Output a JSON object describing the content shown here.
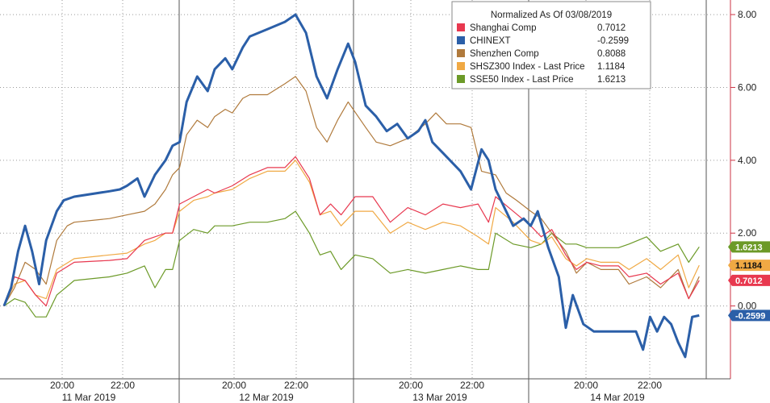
{
  "chart_data": {
    "type": "line",
    "title": "Normalized As Of 03/08/2019",
    "ylim": [
      -2,
      8.4
    ],
    "y_ticks": [
      "8.00",
      "6.00",
      "4.00",
      "2.00",
      "0.00"
    ],
    "y_tick_values": [
      8,
      6,
      4,
      2,
      0
    ],
    "x_time_ticks": [
      "20:00",
      "22:00",
      "20:00",
      "22:00",
      "20:00",
      "22:00",
      "20:00",
      "22:00"
    ],
    "x_day_labels": [
      "11 Mar 2019",
      "12 Mar 2019",
      "13 Mar 2019",
      "14 Mar 2019"
    ],
    "grid": true,
    "legend_position": "top-right",
    "series": [
      {
        "name": "Shanghai Comp",
        "last_value": "0.7012",
        "color": "#e8384f",
        "values": [
          [
            0,
            0
          ],
          [
            0.3,
            0.8
          ],
          [
            0.6,
            0.7
          ],
          [
            0.9,
            0.3
          ],
          [
            1.2,
            0
          ],
          [
            1.5,
            0.9
          ],
          [
            2,
            1.2
          ],
          [
            3,
            1.25
          ],
          [
            3.5,
            1.3
          ],
          [
            4,
            1.8
          ],
          [
            4.3,
            1.9
          ],
          [
            4.6,
            2
          ],
          [
            4.8,
            2
          ],
          [
            5,
            2.8
          ],
          [
            5.4,
            3
          ],
          [
            5.8,
            3.2
          ],
          [
            6,
            3.1
          ],
          [
            6.5,
            3.3
          ],
          [
            7,
            3.6
          ],
          [
            7.5,
            3.8
          ],
          [
            8,
            3.8
          ],
          [
            8.3,
            4.1
          ],
          [
            8.7,
            3.5
          ],
          [
            9,
            2.5
          ],
          [
            9.3,
            2.8
          ],
          [
            9.6,
            2.5
          ],
          [
            10,
            3
          ],
          [
            10.5,
            3
          ],
          [
            11,
            2.3
          ],
          [
            11.5,
            2.7
          ],
          [
            12,
            2.5
          ],
          [
            12.5,
            2.8
          ],
          [
            13,
            2.7
          ],
          [
            13.5,
            2.8
          ],
          [
            13.8,
            2.3
          ],
          [
            14,
            3
          ],
          [
            14.5,
            2.6
          ],
          [
            15,
            2.2
          ],
          [
            15.3,
            1.9
          ],
          [
            15.6,
            2.1
          ],
          [
            16,
            1.4
          ],
          [
            16.3,
            1
          ],
          [
            16.6,
            1.2
          ],
          [
            17,
            1.1
          ],
          [
            17.5,
            1.1
          ],
          [
            17.8,
            0.8
          ],
          [
            18.3,
            0.9
          ],
          [
            18.7,
            0.6
          ],
          [
            19.2,
            0.9
          ],
          [
            19.5,
            0.2
          ],
          [
            19.8,
            0.7012
          ]
        ]
      },
      {
        "name": "CHINEXT",
        "last_value": "-0.2599",
        "color": "#2b5fa8",
        "values": [
          [
            0,
            0
          ],
          [
            0.2,
            0.5
          ],
          [
            0.4,
            1.5
          ],
          [
            0.6,
            2.2
          ],
          [
            0.8,
            1.5
          ],
          [
            1,
            0.6
          ],
          [
            1.2,
            1.8
          ],
          [
            1.5,
            2.6
          ],
          [
            1.7,
            2.9
          ],
          [
            2,
            3
          ],
          [
            3,
            3.15
          ],
          [
            3.3,
            3.2
          ],
          [
            3.5,
            3.3
          ],
          [
            3.8,
            3.5
          ],
          [
            4,
            3
          ],
          [
            4.3,
            3.6
          ],
          [
            4.6,
            4
          ],
          [
            4.8,
            4.4
          ],
          [
            5,
            4.5
          ],
          [
            5.2,
            5.6
          ],
          [
            5.5,
            6.3
          ],
          [
            5.8,
            5.9
          ],
          [
            6,
            6.5
          ],
          [
            6.3,
            6.8
          ],
          [
            6.5,
            6.5
          ],
          [
            6.8,
            7.1
          ],
          [
            7,
            7.4
          ],
          [
            7.5,
            7.6
          ],
          [
            8,
            7.8
          ],
          [
            8.3,
            8
          ],
          [
            8.6,
            7.5
          ],
          [
            8.9,
            6.3
          ],
          [
            9.2,
            5.7
          ],
          [
            9.5,
            6.5
          ],
          [
            9.8,
            7.2
          ],
          [
            10,
            6.7
          ],
          [
            10.3,
            5.5
          ],
          [
            10.6,
            5.2
          ],
          [
            10.9,
            4.8
          ],
          [
            11.2,
            5
          ],
          [
            11.5,
            4.6
          ],
          [
            11.8,
            4.8
          ],
          [
            12,
            5.1
          ],
          [
            12.2,
            4.5
          ],
          [
            12.5,
            4.2
          ],
          [
            13,
            3.7
          ],
          [
            13.3,
            3.2
          ],
          [
            13.6,
            4.3
          ],
          [
            13.8,
            4
          ],
          [
            14,
            3.2
          ],
          [
            14.3,
            2.6
          ],
          [
            14.5,
            2.2
          ],
          [
            14.8,
            2.4
          ],
          [
            15,
            2.2
          ],
          [
            15.2,
            2.6
          ],
          [
            15.5,
            1.6
          ],
          [
            15.8,
            0.8
          ],
          [
            16,
            -0.6
          ],
          [
            16.2,
            0.3
          ],
          [
            16.5,
            -0.5
          ],
          [
            16.8,
            -0.7
          ],
          [
            17.5,
            -0.7
          ],
          [
            18,
            -0.7
          ],
          [
            18.2,
            -1.2
          ],
          [
            18.4,
            -0.3
          ],
          [
            18.6,
            -0.7
          ],
          [
            18.8,
            -0.3
          ],
          [
            19,
            -0.5
          ],
          [
            19.2,
            -1
          ],
          [
            19.4,
            -1.4
          ],
          [
            19.6,
            -0.3
          ],
          [
            19.8,
            -0.2599
          ]
        ]
      },
      {
        "name": "Shenzhen Comp",
        "last_value": "0.8088",
        "color": "#b07a3c",
        "values": [
          [
            0,
            0
          ],
          [
            0.3,
            0.5
          ],
          [
            0.6,
            1.2
          ],
          [
            0.9,
            1
          ],
          [
            1.2,
            0.6
          ],
          [
            1.5,
            1.8
          ],
          [
            1.8,
            2.2
          ],
          [
            2,
            2.3
          ],
          [
            3,
            2.4
          ],
          [
            3.5,
            2.5
          ],
          [
            4,
            2.6
          ],
          [
            4.3,
            2.8
          ],
          [
            4.6,
            3.2
          ],
          [
            4.8,
            3.6
          ],
          [
            5,
            3.8
          ],
          [
            5.2,
            4.7
          ],
          [
            5.5,
            5.1
          ],
          [
            5.8,
            4.9
          ],
          [
            6,
            5.2
          ],
          [
            6.3,
            5.4
          ],
          [
            6.5,
            5.3
          ],
          [
            6.8,
            5.7
          ],
          [
            7,
            5.8
          ],
          [
            7.5,
            5.8
          ],
          [
            8,
            6.1
          ],
          [
            8.3,
            6.3
          ],
          [
            8.6,
            5.9
          ],
          [
            8.9,
            4.9
          ],
          [
            9.2,
            4.5
          ],
          [
            9.5,
            5.1
          ],
          [
            9.8,
            5.6
          ],
          [
            10.3,
            4.9
          ],
          [
            10.6,
            4.5
          ],
          [
            11,
            4.4
          ],
          [
            11.5,
            4.6
          ],
          [
            12,
            5
          ],
          [
            12.3,
            5.3
          ],
          [
            12.6,
            5
          ],
          [
            13,
            5
          ],
          [
            13.3,
            4.9
          ],
          [
            13.6,
            3.7
          ],
          [
            14,
            3.6
          ],
          [
            14.3,
            3.1
          ],
          [
            14.6,
            2.9
          ],
          [
            15,
            2.6
          ],
          [
            15.3,
            2.4
          ],
          [
            15.6,
            2
          ],
          [
            16,
            1.5
          ],
          [
            16.3,
            0.9
          ],
          [
            16.6,
            1.2
          ],
          [
            17,
            1
          ],
          [
            17.5,
            1
          ],
          [
            17.8,
            0.6
          ],
          [
            18.3,
            0.8
          ],
          [
            18.7,
            0.5
          ],
          [
            19.2,
            1
          ],
          [
            19.5,
            0.2
          ],
          [
            19.8,
            0.8088
          ]
        ]
      },
      {
        "name": "SHSZ300 Index - Last Price",
        "last_value": "1.1184",
        "color": "#f0a944",
        "values": [
          [
            0,
            0
          ],
          [
            0.3,
            0.6
          ],
          [
            0.6,
            0.7
          ],
          [
            0.9,
            0.3
          ],
          [
            1.2,
            0.2
          ],
          [
            1.5,
            1
          ],
          [
            2,
            1.3
          ],
          [
            3,
            1.4
          ],
          [
            3.5,
            1.45
          ],
          [
            4,
            1.7
          ],
          [
            4.3,
            1.8
          ],
          [
            4.6,
            2
          ],
          [
            4.8,
            2
          ],
          [
            5,
            2.6
          ],
          [
            5.4,
            2.9
          ],
          [
            5.8,
            3
          ],
          [
            6,
            3.1
          ],
          [
            6.5,
            3.2
          ],
          [
            7,
            3.5
          ],
          [
            7.5,
            3.7
          ],
          [
            8,
            3.7
          ],
          [
            8.3,
            4
          ],
          [
            8.7,
            3.4
          ],
          [
            9,
            2.5
          ],
          [
            9.3,
            2.6
          ],
          [
            9.6,
            2.2
          ],
          [
            10,
            2.6
          ],
          [
            10.5,
            2.6
          ],
          [
            11,
            2
          ],
          [
            11.5,
            2.3
          ],
          [
            12,
            2.1
          ],
          [
            12.5,
            2.3
          ],
          [
            13,
            2.2
          ],
          [
            13.5,
            1.9
          ],
          [
            13.8,
            1.7
          ],
          [
            14,
            2.7
          ],
          [
            14.5,
            2.3
          ],
          [
            15,
            1.8
          ],
          [
            15.3,
            1.7
          ],
          [
            15.6,
            1.9
          ],
          [
            16,
            1.3
          ],
          [
            16.3,
            1.1
          ],
          [
            16.6,
            1.3
          ],
          [
            17,
            1.2
          ],
          [
            17.5,
            1.2
          ],
          [
            17.8,
            1
          ],
          [
            18.3,
            1.3
          ],
          [
            18.7,
            1
          ],
          [
            19.2,
            1.4
          ],
          [
            19.5,
            0.5
          ],
          [
            19.8,
            1.1184
          ]
        ]
      },
      {
        "name": "SSE50 Index - Last Price",
        "last_value": "1.6213",
        "color": "#6c9a28",
        "values": [
          [
            0,
            0
          ],
          [
            0.3,
            0.2
          ],
          [
            0.6,
            0.1
          ],
          [
            0.9,
            -0.3
          ],
          [
            1.2,
            -0.3
          ],
          [
            1.5,
            0.3
          ],
          [
            2,
            0.7
          ],
          [
            3,
            0.8
          ],
          [
            3.5,
            0.9
          ],
          [
            4,
            1.1
          ],
          [
            4.3,
            0.5
          ],
          [
            4.6,
            1
          ],
          [
            4.8,
            1
          ],
          [
            5,
            1.8
          ],
          [
            5.4,
            2.1
          ],
          [
            5.8,
            2
          ],
          [
            6,
            2.2
          ],
          [
            6.5,
            2.2
          ],
          [
            7,
            2.3
          ],
          [
            7.5,
            2.3
          ],
          [
            8,
            2.4
          ],
          [
            8.3,
            2.6
          ],
          [
            8.7,
            2
          ],
          [
            9,
            1.4
          ],
          [
            9.3,
            1.5
          ],
          [
            9.6,
            1
          ],
          [
            10,
            1.4
          ],
          [
            10.5,
            1.3
          ],
          [
            11,
            0.9
          ],
          [
            11.5,
            1
          ],
          [
            12,
            0.9
          ],
          [
            12.5,
            1
          ],
          [
            13,
            1.1
          ],
          [
            13.5,
            1
          ],
          [
            13.8,
            1
          ],
          [
            14,
            2
          ],
          [
            14.5,
            1.7
          ],
          [
            15,
            1.6
          ],
          [
            15.3,
            1.7
          ],
          [
            15.6,
            2
          ],
          [
            16,
            1.7
          ],
          [
            16.3,
            1.7
          ],
          [
            16.6,
            1.6
          ],
          [
            17,
            1.6
          ],
          [
            17.5,
            1.6
          ],
          [
            17.8,
            1.7
          ],
          [
            18.3,
            1.9
          ],
          [
            18.7,
            1.5
          ],
          [
            19.2,
            1.7
          ],
          [
            19.5,
            1.2
          ],
          [
            19.8,
            1.6213
          ]
        ]
      }
    ]
  }
}
